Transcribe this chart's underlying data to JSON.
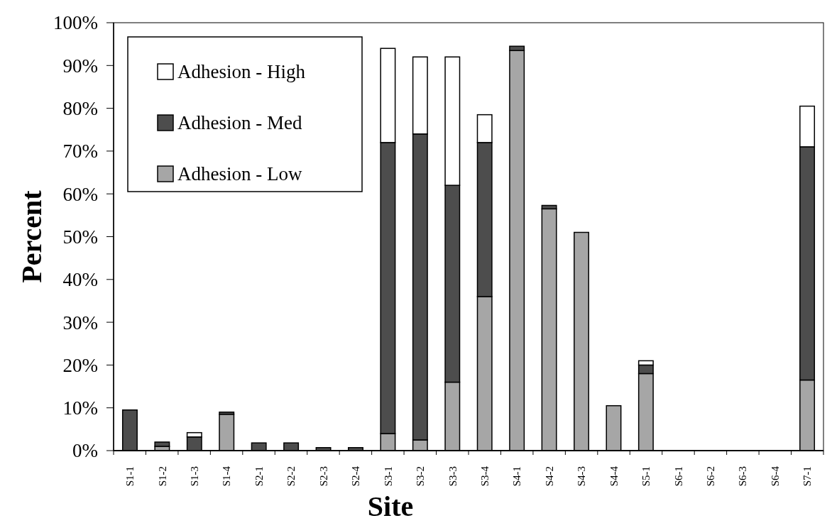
{
  "chart_data": {
    "type": "bar",
    "stacked": true,
    "xlabel": "Site",
    "ylabel": "Percent",
    "categories": [
      "S1-1",
      "S1-2",
      "S1-3",
      "S1-4",
      "S2-1",
      "S2-2",
      "S2-3",
      "S2-4",
      "S3-1",
      "S3-2",
      "S3-3",
      "S3-4",
      "S4-1",
      "S4-2",
      "S4-3",
      "S4-4",
      "S5-1",
      "S6-1",
      "S6-2",
      "S6-3",
      "S6-4",
      "S7-1"
    ],
    "series": [
      {
        "name": "Adhesion - Low",
        "color": "#a6a6a6",
        "values": [
          0,
          1,
          0,
          8.5,
          0,
          0,
          0,
          0,
          4,
          2.5,
          16,
          36,
          93.5,
          56.5,
          51,
          10.5,
          18,
          0,
          0,
          0,
          0,
          16.5
        ]
      },
      {
        "name": "Adhesion - Med",
        "color": "#4d4d4d",
        "values": [
          9.5,
          1,
          3.2,
          0.5,
          1.8,
          1.8,
          0.7,
          0.7,
          68,
          71.5,
          46,
          36,
          1,
          0.8,
          0,
          0,
          2,
          0,
          0,
          0,
          0,
          54.5
        ]
      },
      {
        "name": "Adhesion - High",
        "color": "#ffffff",
        "values": [
          0,
          0,
          1,
          0,
          0,
          0,
          0,
          0,
          22,
          18,
          30,
          6.5,
          0,
          0,
          0,
          0,
          1,
          0,
          0,
          0,
          0,
          9.5
        ]
      }
    ],
    "ylim": [
      0,
      100
    ],
    "yticks": [
      {
        "value": 0,
        "label": "0%"
      },
      {
        "value": 10,
        "label": "10%"
      },
      {
        "value": 20,
        "label": "20%"
      },
      {
        "value": 30,
        "label": "30%"
      },
      {
        "value": 40,
        "label": "40%"
      },
      {
        "value": 50,
        "label": "50%"
      },
      {
        "value": 60,
        "label": "60%"
      },
      {
        "value": 70,
        "label": "70%"
      },
      {
        "value": 80,
        "label": "80%"
      },
      {
        "value": 90,
        "label": "90%"
      },
      {
        "value": 100,
        "label": "100%"
      }
    ],
    "grid": false,
    "legend": "top left"
  }
}
